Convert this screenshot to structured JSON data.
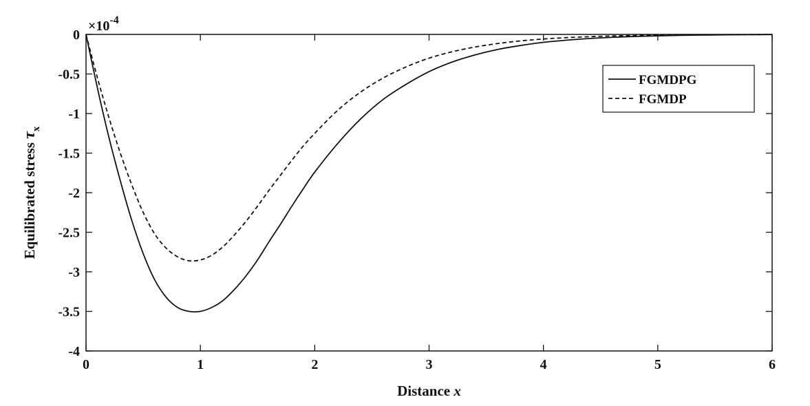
{
  "chart_data": {
    "type": "line",
    "title": "",
    "xlabel": "Distance",
    "xlabel_symbol": "x",
    "ylabel": "Equilibrated stress",
    "ylabel_symbol": "τ",
    "ylabel_subscript": "x",
    "y_scale_factor": {
      "base": "×10",
      "exponent": "-4"
    },
    "xlim": [
      0,
      6
    ],
    "ylim": [
      -4,
      0
    ],
    "x_ticks": [
      0,
      1,
      2,
      3,
      4,
      5,
      6
    ],
    "x_tick_labels": [
      "0",
      "1",
      "2",
      "3",
      "4",
      "5",
      "6"
    ],
    "y_ticks": [
      0,
      -0.5,
      -1,
      -1.5,
      -2,
      -2.5,
      -3,
      -3.5,
      -4
    ],
    "y_tick_labels": [
      "0",
      "-0.5",
      "-1",
      "-1.5",
      "-2",
      "-2.5",
      "-3",
      "-3.5",
      "-4"
    ],
    "grid": false,
    "legend_position": "top-right",
    "series": [
      {
        "name": "FGMDPG",
        "line_style": "solid",
        "color": "#111111",
        "x": [
          0,
          0.1,
          0.2,
          0.3,
          0.4,
          0.5,
          0.6,
          0.7,
          0.8,
          0.9,
          1.0,
          1.1,
          1.2,
          1.3,
          1.4,
          1.5,
          1.6,
          1.7,
          1.8,
          1.9,
          2.0,
          2.2,
          2.4,
          2.6,
          2.8,
          3.0,
          3.2,
          3.4,
          3.6,
          3.8,
          4.0,
          4.2,
          4.4,
          4.6,
          4.8,
          5.0,
          5.2,
          5.4,
          5.6,
          5.8,
          6.0
        ],
        "y": [
          0,
          -0.68,
          -1.3,
          -1.85,
          -2.35,
          -2.77,
          -3.1,
          -3.32,
          -3.45,
          -3.5,
          -3.5,
          -3.45,
          -3.36,
          -3.22,
          -3.05,
          -2.85,
          -2.62,
          -2.4,
          -2.17,
          -1.95,
          -1.74,
          -1.38,
          -1.07,
          -0.82,
          -0.63,
          -0.47,
          -0.35,
          -0.26,
          -0.19,
          -0.14,
          -0.1,
          -0.073,
          -0.052,
          -0.037,
          -0.026,
          -0.018,
          -0.012,
          -0.008,
          -0.005,
          -0.003,
          -0.002
        ]
      },
      {
        "name": "FGMDP",
        "line_style": "dashed",
        "color": "#111111",
        "x": [
          0,
          0.1,
          0.2,
          0.3,
          0.4,
          0.5,
          0.6,
          0.7,
          0.8,
          0.9,
          1.0,
          1.1,
          1.2,
          1.3,
          1.4,
          1.5,
          1.6,
          1.7,
          1.8,
          1.9,
          2.0,
          2.2,
          2.4,
          2.6,
          2.8,
          3.0,
          3.2,
          3.4,
          3.6,
          3.8,
          4.0,
          4.2,
          4.4,
          4.6,
          4.8,
          5.0,
          5.2,
          5.4,
          5.6,
          5.8,
          6.0
        ],
        "y": [
          0,
          -0.55,
          -1.05,
          -1.5,
          -1.9,
          -2.25,
          -2.52,
          -2.7,
          -2.81,
          -2.86,
          -2.85,
          -2.79,
          -2.68,
          -2.53,
          -2.36,
          -2.17,
          -1.97,
          -1.78,
          -1.59,
          -1.41,
          -1.25,
          -0.96,
          -0.73,
          -0.55,
          -0.41,
          -0.3,
          -0.22,
          -0.16,
          -0.115,
          -0.082,
          -0.058,
          -0.041,
          -0.029,
          -0.02,
          -0.014,
          -0.009,
          -0.006,
          -0.004,
          -0.003,
          -0.002,
          -0.001
        ]
      }
    ]
  }
}
